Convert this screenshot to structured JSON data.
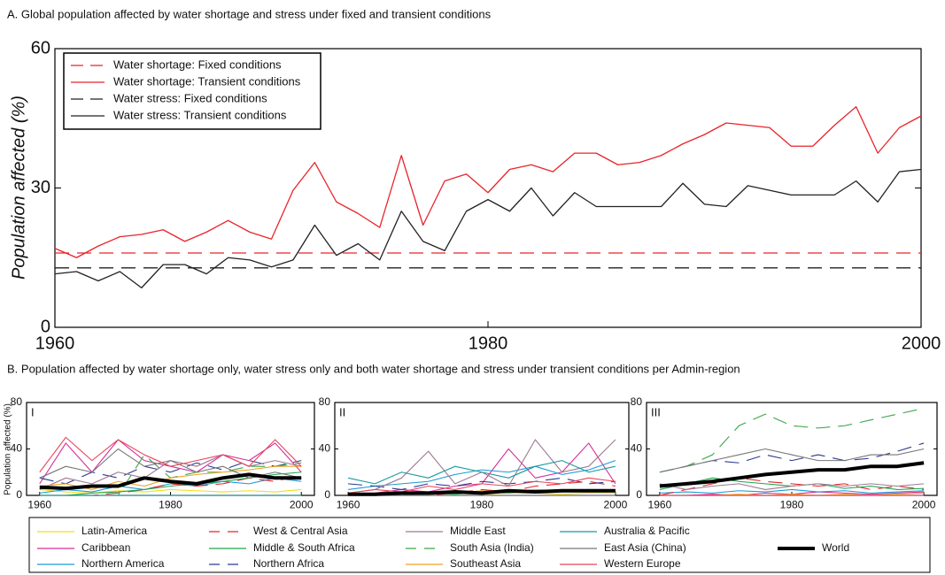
{
  "chart_data": [
    {
      "type": "line",
      "title": "A. Global population affected by water shortage and stress under fixed and transient conditions",
      "ylabel": "Population affected (%)",
      "x": [
        1960,
        1961,
        1962,
        1963,
        1964,
        1965,
        1966,
        1967,
        1968,
        1969,
        1970,
        1971,
        1972,
        1973,
        1974,
        1975,
        1976,
        1977,
        1978,
        1979,
        1980,
        1981,
        1982,
        1983,
        1984,
        1985,
        1986,
        1987,
        1988,
        1989,
        1990,
        1991,
        1992,
        1993,
        1994,
        1995,
        1996,
        1997,
        1998,
        1999,
        2000
      ],
      "xlim": [
        1960,
        2000
      ],
      "ylim": [
        0,
        60
      ],
      "xticks": [
        1960,
        1980,
        2000
      ],
      "yticks": [
        0,
        30,
        60
      ],
      "legend": "upper left",
      "series": [
        {
          "name": "Water shortage: Fixed conditions",
          "color": "#e8242a",
          "dash": true,
          "x": [
            1960,
            2000
          ],
          "values": [
            16,
            16
          ]
        },
        {
          "name": "Water shortage: Transient conditions",
          "color": "#e8242a",
          "dash": false,
          "values": [
            17,
            15,
            17.5,
            19.5,
            20,
            21,
            18.5,
            20.5,
            23,
            20.5,
            19,
            29.5,
            35.5,
            27,
            24.5,
            21.5,
            37,
            22,
            31.5,
            33,
            29,
            34,
            35,
            33.5,
            37.5,
            37.5,
            35,
            35.5,
            37,
            39.5,
            41.5,
            44,
            43.5,
            43,
            39,
            39,
            43.5,
            47.5,
            37.5,
            43,
            45.5
          ]
        },
        {
          "name": "Water stress: Fixed conditions",
          "color": "#222222",
          "dash": true,
          "x": [
            1960,
            2000
          ],
          "values": [
            12.8,
            12.8
          ]
        },
        {
          "name": "Water stress: Transient conditions",
          "color": "#222222",
          "dash": false,
          "values": [
            11.5,
            12,
            10,
            12,
            8.5,
            13.5,
            13.5,
            11.5,
            15,
            14.5,
            13,
            14.5,
            22,
            15.5,
            18,
            14.5,
            25,
            18.5,
            16.5,
            25,
            27.5,
            25,
            30,
            24,
            29,
            26,
            26,
            26,
            26,
            31,
            26.5,
            26,
            30.5,
            29.5,
            28.5,
            28.5,
            28.5,
            31.5,
            27,
            33.5,
            34
          ]
        }
      ]
    },
    {
      "type": "line",
      "title": "B. Population affected by water shortage only, water stress only and both water shortage and stress under transient conditions per Admin-region",
      "ylabel": "Population affected (%)",
      "panels": [
        "I",
        "II",
        "III"
      ],
      "x": [
        1960,
        1964,
        1968,
        1972,
        1976,
        1980,
        1984,
        1988,
        1992,
        1996,
        2000
      ],
      "xlim": [
        1958,
        2002
      ],
      "ylim": [
        0,
        80
      ],
      "xticks": [
        1960,
        1980,
        2000
      ],
      "yticks": [
        0,
        40,
        80
      ],
      "series": [
        {
          "name": "Latin-America",
          "color": "#f2de1a",
          "dash": false,
          "values": [
            [
              5,
              3,
              2,
              4,
              3,
              5,
              4,
              3,
              4,
              3,
              5
            ],
            [
              2,
              1,
              2,
              1,
              2,
              1,
              2,
              2,
              1,
              2,
              2
            ],
            [
              0,
              0,
              0,
              0,
              0,
              0,
              0,
              0,
              0,
              0,
              0
            ]
          ]
        },
        {
          "name": "Caribbean",
          "color": "#d62d9a",
          "dash": false,
          "values": [
            [
              10,
              45,
              20,
              48,
              30,
              25,
              20,
              35,
              30,
              45,
              20
            ],
            [
              0,
              2,
              5,
              3,
              8,
              10,
              40,
              15,
              20,
              45,
              10
            ],
            [
              0,
              0,
              1,
              0,
              2,
              1,
              3,
              2,
              1,
              2,
              3
            ]
          ]
        },
        {
          "name": "Northern America",
          "color": "#1a9ad6",
          "dash": false,
          "values": [
            [
              2,
              5,
              3,
              8,
              5,
              10,
              8,
              12,
              10,
              15,
              12
            ],
            [
              5,
              8,
              10,
              12,
              18,
              22,
              20,
              25,
              18,
              22,
              30
            ],
            [
              2,
              3,
              2,
              4,
              3,
              5,
              3,
              4,
              2,
              3,
              4
            ]
          ]
        },
        {
          "name": "West & Central Asia",
          "color": "#e8242a",
          "dash": true,
          "values": [
            [
              0,
              0,
              0,
              2,
              5,
              10,
              8,
              10,
              15,
              12,
              18
            ],
            [
              0,
              0,
              0,
              0,
              2,
              5,
              3,
              8,
              10,
              12,
              8
            ],
            [
              0,
              5,
              10,
              15,
              12,
              10,
              8,
              10,
              5,
              8,
              5
            ]
          ]
        },
        {
          "name": "Middle & South Africa",
          "color": "#1aa64a",
          "dash": false,
          "values": [
            [
              0,
              0,
              2,
              3,
              5,
              8,
              10,
              12,
              15,
              18,
              20
            ],
            [
              0,
              1,
              0,
              2,
              1,
              3,
              2,
              4,
              3,
              5,
              4
            ],
            [
              5,
              10,
              15,
              12,
              10,
              8,
              10,
              6,
              8,
              5,
              6
            ]
          ]
        },
        {
          "name": "Northern Africa",
          "color": "#2b3990",
          "dash": true,
          "values": [
            [
              15,
              10,
              20,
              15,
              25,
              20,
              28,
              22,
              30,
              25,
              30
            ],
            [
              10,
              8,
              5,
              10,
              8,
              12,
              10,
              12,
              15,
              10,
              12
            ],
            [
              20,
              25,
              30,
              28,
              35,
              30,
              35,
              30,
              32,
              38,
              45
            ]
          ]
        },
        {
          "name": "Middle East",
          "color": "#9e7a93",
          "dash": false,
          "values": [
            [
              5,
              15,
              10,
              20,
              15,
              30,
              25,
              35,
              25,
              30,
              25
            ],
            [
              2,
              5,
              15,
              38,
              10,
              20,
              8,
              48,
              20,
              25,
              48
            ],
            [
              10,
              5,
              8,
              10,
              5,
              8,
              10,
              8,
              10,
              8,
              10
            ]
          ]
        },
        {
          "name": "South Asia (India)",
          "color": "#3aa648",
          "dash": true,
          "values": [
            [
              0,
              0,
              0,
              0,
              35,
              15,
              20,
              20,
              25,
              25,
              28
            ],
            [
              0,
              0,
              0,
              0,
              0,
              0,
              0,
              0,
              0,
              0,
              0
            ],
            [
              20,
              25,
              35,
              60,
              70,
              60,
              58,
              60,
              65,
              70,
              75
            ]
          ]
        },
        {
          "name": "Southeast Asia",
          "color": "#f0a020",
          "dash": false,
          "values": [
            [
              8,
              10,
              5,
              12,
              8,
              15,
              18,
              20,
              22,
              25,
              25
            ],
            [
              0,
              2,
              1,
              3,
              2,
              4,
              3,
              5,
              4,
              3,
              5
            ],
            [
              0,
              0,
              0,
              1,
              0,
              1,
              0,
              1,
              0,
              1,
              2
            ]
          ]
        },
        {
          "name": "Australia & Pacific",
          "color": "#1a9a9a",
          "dash": false,
          "values": [
            [
              0,
              0,
              0,
              0,
              0,
              0,
              0,
              0,
              0,
              0,
              0
            ],
            [
              15,
              10,
              20,
              15,
              25,
              20,
              15,
              25,
              30,
              20,
              25
            ],
            [
              0,
              0,
              0,
              0,
              0,
              0,
              0,
              0,
              0,
              0,
              0
            ]
          ]
        },
        {
          "name": "East Asia (China)",
          "color": "#777777",
          "dash": false,
          "values": [
            [
              15,
              25,
              20,
              40,
              25,
              30,
              20,
              25,
              15,
              20,
              15
            ],
            [
              0,
              0,
              0,
              0,
              0,
              0,
              0,
              0,
              0,
              0,
              0
            ],
            [
              20,
              25,
              30,
              35,
              40,
              35,
              30,
              30,
              35,
              35,
              40
            ]
          ]
        },
        {
          "name": "Western Europe",
          "color": "#e8465a",
          "dash": false,
          "values": [
            [
              20,
              50,
              30,
              48,
              35,
              25,
              30,
              35,
              25,
              48,
              25
            ],
            [
              2,
              5,
              3,
              8,
              5,
              10,
              8,
              12,
              10,
              15,
              12
            ],
            [
              0,
              0,
              0,
              0,
              0,
              0,
              0,
              0,
              0,
              0,
              0
            ]
          ]
        },
        {
          "name": "World",
          "color": "#000000",
          "dash": false,
          "linewidth": 4,
          "values": [
            [
              7,
              6,
              8,
              8,
              15,
              12,
              10,
              15,
              18,
              15,
              15
            ],
            [
              1,
              1,
              2,
              2,
              3,
              2,
              4,
              3,
              4,
              4,
              4
            ],
            [
              8,
              10,
              12,
              15,
              18,
              20,
              22,
              22,
              25,
              25,
              28
            ]
          ]
        }
      ]
    }
  ]
}
